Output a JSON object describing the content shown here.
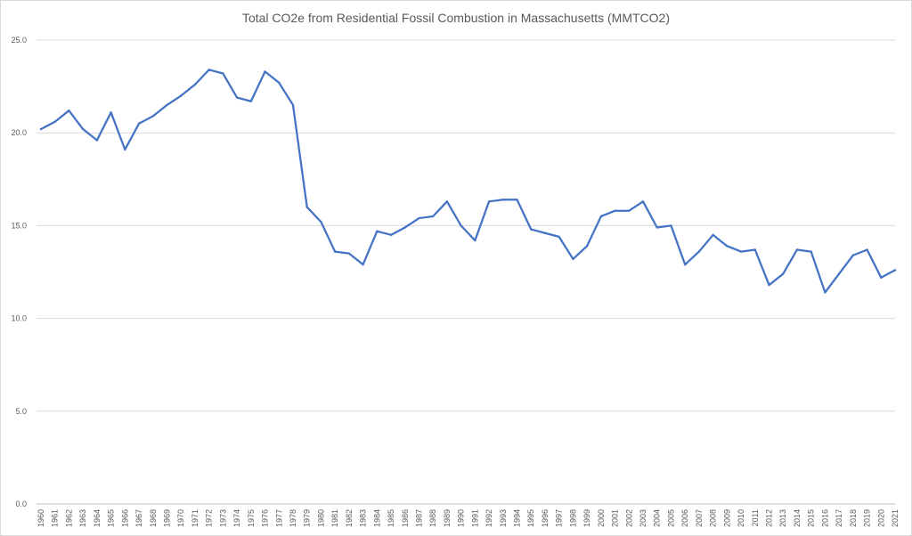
{
  "chart_data": {
    "type": "line",
    "title": "Total CO2e from Residential Fossil Combustion in Massachusetts (MMTCO2)",
    "xlabel": "",
    "ylabel": "",
    "ylim": [
      0,
      25
    ],
    "yticks": [
      "0.0",
      "5.0",
      "10.0",
      "15.0",
      "20.0",
      "25.0"
    ],
    "grid": true,
    "legend": "none",
    "categories": [
      "1960",
      "1961",
      "1962",
      "1963",
      "1964",
      "1965",
      "1966",
      "1967",
      "1968",
      "1969",
      "1970",
      "1971",
      "1972",
      "1973",
      "1974",
      "1975",
      "1976",
      "1977",
      "1978",
      "1979",
      "1980",
      "1981",
      "1982",
      "1983",
      "1984",
      "1985",
      "1986",
      "1987",
      "1988",
      "1989",
      "1990",
      "1991",
      "1992",
      "1993",
      "1994",
      "1995",
      "1996",
      "1997",
      "1998",
      "1999",
      "2000",
      "2001",
      "2002",
      "2003",
      "2004",
      "2005",
      "2006",
      "2007",
      "2008",
      "2009",
      "2010",
      "2011",
      "2012",
      "2013",
      "2014",
      "2015",
      "2016",
      "2017",
      "2018",
      "2019",
      "2020",
      "2021"
    ],
    "series": [
      {
        "color": "#4472c4",
        "values": [
          20.2,
          20.6,
          21.2,
          20.2,
          19.6,
          21.1,
          19.1,
          20.5,
          20.9,
          21.5,
          22.0,
          22.6,
          23.4,
          23.2,
          21.9,
          21.7,
          23.3,
          22.7,
          21.5,
          16.0,
          15.2,
          13.6,
          13.5,
          12.9,
          14.7,
          14.5,
          14.9,
          15.4,
          15.5,
          16.3,
          15.0,
          14.2,
          16.3,
          16.4,
          16.4,
          14.8,
          14.6,
          14.4,
          13.2,
          13.9,
          15.5,
          15.8,
          15.8,
          16.3,
          14.9,
          15.0,
          12.9,
          13.6,
          14.5,
          13.9,
          13.6,
          13.7,
          11.8,
          12.4,
          13.7,
          13.6,
          11.4,
          12.4,
          13.4,
          13.7,
          12.2,
          12.6
        ]
      }
    ]
  }
}
